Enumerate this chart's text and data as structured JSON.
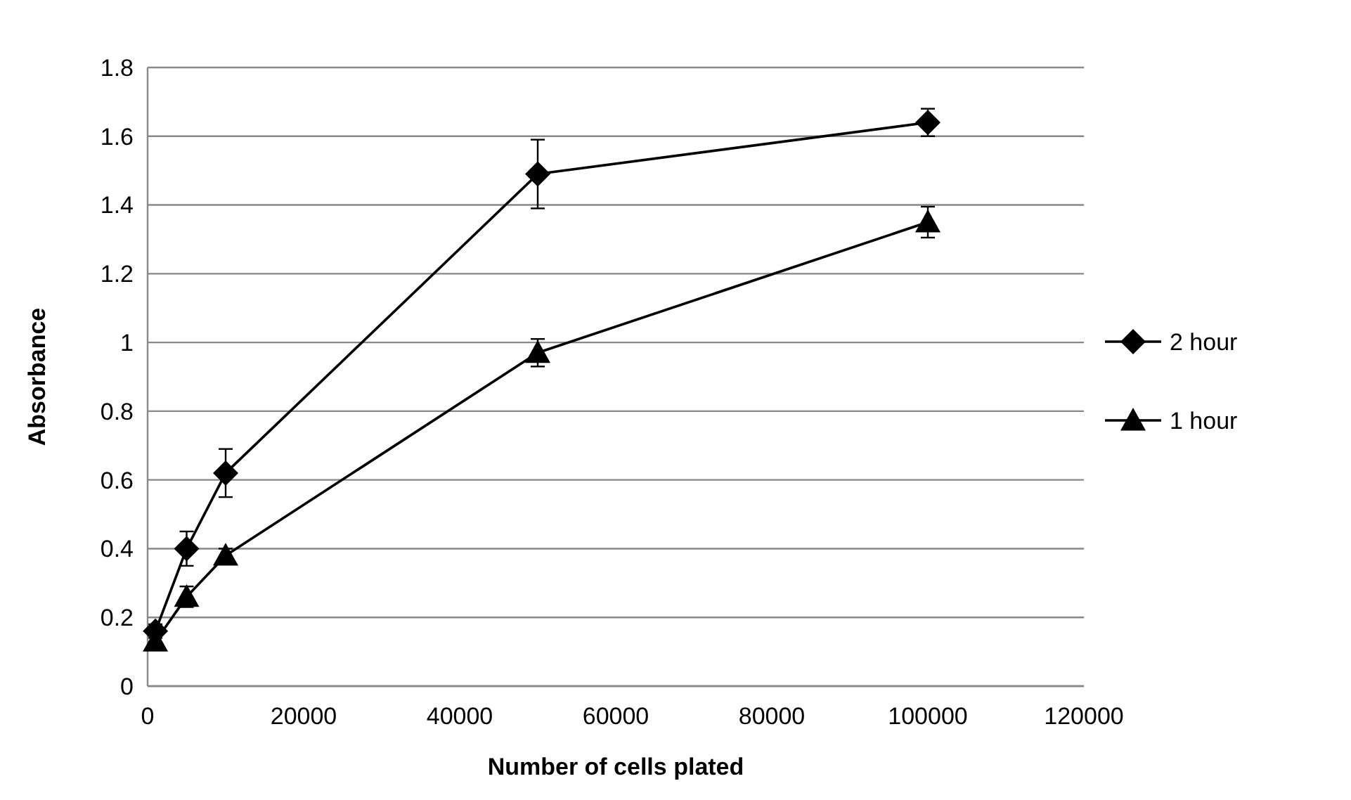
{
  "chart_data": {
    "type": "line",
    "xlabel": "Number of cells plated",
    "ylabel": "Absorbance",
    "x": [
      1000,
      5000,
      10000,
      50000,
      100000
    ],
    "series": [
      {
        "name": "2 hour",
        "color": "#000000",
        "marker": "diamond",
        "values": [
          0.16,
          0.4,
          0.62,
          1.49,
          1.64
        ],
        "errors": [
          0.02,
          0.05,
          0.07,
          0.1,
          0.04
        ]
      },
      {
        "name": "1 hour",
        "color": "#000000",
        "marker": "triangle",
        "values": [
          0.13,
          0.26,
          0.38,
          0.97,
          1.35
        ],
        "errors": [
          0.02,
          0.03,
          0.02,
          0.04,
          0.045
        ]
      }
    ],
    "xlim": [
      0,
      120000
    ],
    "xticks": [
      0,
      20000,
      40000,
      60000,
      80000,
      100000,
      120000
    ],
    "ylim": [
      0,
      1.8
    ],
    "yticks": [
      0,
      0.2,
      0.4,
      0.6,
      0.8,
      1,
      1.2,
      1.4,
      1.6,
      1.8
    ],
    "grid": "y",
    "legend": "right",
    "line_style": "solid"
  }
}
